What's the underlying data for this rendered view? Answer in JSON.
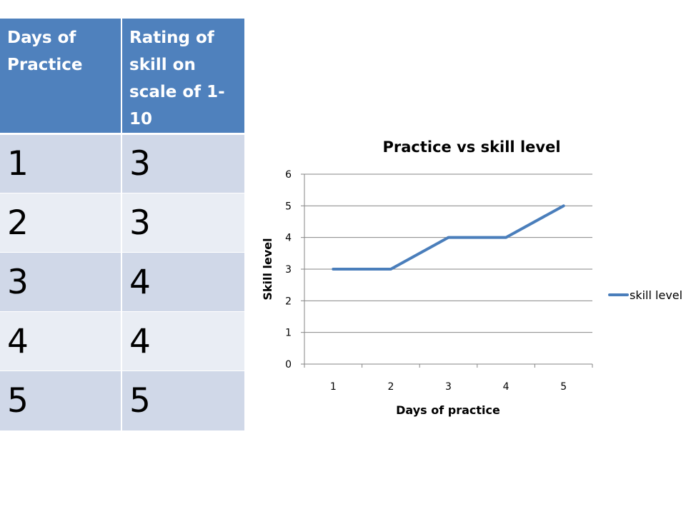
{
  "table": {
    "headers": [
      "Days of Practice",
      "Rating of skill on scale of 1-10"
    ],
    "rows": [
      [
        "1",
        "3"
      ],
      [
        "2",
        "3"
      ],
      [
        "3",
        "4"
      ],
      [
        "4",
        "4"
      ],
      [
        "5",
        "5"
      ]
    ],
    "header_color": "#4f81bd",
    "row_colors": [
      "#d0d8e8",
      "#e9edf4"
    ]
  },
  "chart_data": {
    "type": "line",
    "title": "Practice vs skill level",
    "xlabel": "Days of practice",
    "ylabel": "Skill level",
    "categories": [
      "1",
      "2",
      "3",
      "4",
      "5"
    ],
    "series": [
      {
        "name": "skill level",
        "values": [
          3,
          3,
          4,
          4,
          5
        ],
        "color": "#4a7ebb"
      }
    ],
    "ylim": [
      0,
      6
    ],
    "yticks": [
      0,
      1,
      2,
      3,
      4,
      5,
      6
    ],
    "grid": true,
    "legend": "right"
  }
}
